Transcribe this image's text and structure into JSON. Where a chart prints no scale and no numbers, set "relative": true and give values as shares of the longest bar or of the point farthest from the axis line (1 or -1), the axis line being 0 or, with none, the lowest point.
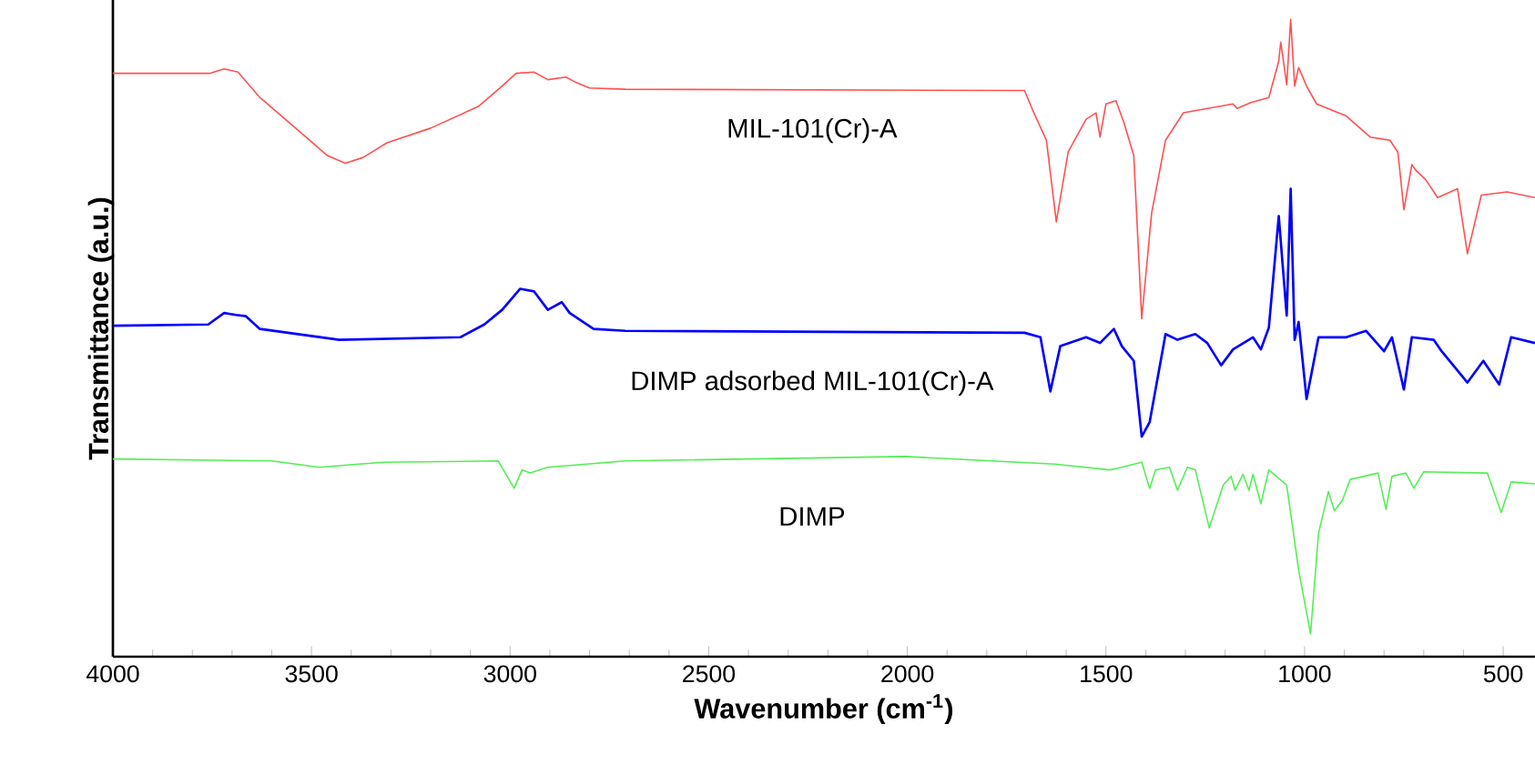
{
  "chart_data": {
    "type": "line",
    "relative": true,
    "xlabel": "Wavenumber (cm$^{-1}$)",
    "ylabel": "Transmittance (a.u.)",
    "xlim": [
      4000,
      420
    ],
    "xticks": [
      4000,
      3500,
      3000,
      2500,
      2000,
      1500,
      1000,
      500
    ],
    "series": [
      {
        "name": "MIL-101(Cr)-A",
        "color": "#ff5050",
        "x": [
          4000,
          3755,
          3720,
          3685,
          3630,
          3540,
          3460,
          3415,
          3370,
          3310,
          3200,
          3080,
          3020,
          2985,
          2940,
          2905,
          2860,
          2835,
          2800,
          2710,
          1705,
          1685,
          1650,
          1625,
          1595,
          1550,
          1525,
          1515,
          1500,
          1475,
          1455,
          1430,
          1410,
          1385,
          1350,
          1305,
          1180,
          1170,
          1135,
          1090,
          1065,
          1060,
          1045,
          1035,
          1025,
          1015,
          995,
          970,
          895,
          835,
          785,
          765,
          750,
          730,
          720,
          695,
          665,
          615,
          590,
          555,
          490,
          420
        ],
        "values": [
          0.915,
          0.915,
          0.922,
          0.917,
          0.877,
          0.829,
          0.786,
          0.774,
          0.783,
          0.806,
          0.829,
          0.863,
          0.895,
          0.915,
          0.917,
          0.905,
          0.909,
          0.901,
          0.892,
          0.89,
          0.888,
          0.858,
          0.81,
          0.682,
          0.792,
          0.843,
          0.853,
          0.815,
          0.867,
          0.872,
          0.838,
          0.786,
          0.53,
          0.696,
          0.81,
          0.853,
          0.867,
          0.86,
          0.869,
          0.877,
          0.934,
          0.964,
          0.897,
          1.0,
          0.895,
          0.924,
          0.895,
          0.867,
          0.848,
          0.815,
          0.81,
          0.791,
          0.701,
          0.772,
          0.763,
          0.748,
          0.72,
          0.734,
          0.632,
          0.724,
          0.729,
          0.72
        ]
      },
      {
        "name": "DIMP adsorbed MIL-101(Cr)-A",
        "color": "#0000ff",
        "x": [
          4000,
          3760,
          3720,
          3690,
          3665,
          3630,
          3430,
          3125,
          3065,
          3020,
          2975,
          2940,
          2905,
          2870,
          2850,
          2790,
          2710,
          1705,
          1665,
          1640,
          1615,
          1550,
          1515,
          1480,
          1460,
          1430,
          1410,
          1390,
          1350,
          1320,
          1275,
          1245,
          1210,
          1180,
          1130,
          1110,
          1090,
          1065,
          1045,
          1035,
          1025,
          1015,
          995,
          965,
          895,
          845,
          800,
          780,
          750,
          730,
          675,
          655,
          590,
          550,
          510,
          480,
          420
        ],
        "values": [
          0.519,
          0.521,
          0.539,
          0.536,
          0.534,
          0.514,
          0.497,
          0.501,
          0.521,
          0.544,
          0.577,
          0.573,
          0.544,
          0.556,
          0.539,
          0.514,
          0.511,
          0.508,
          0.501,
          0.416,
          0.487,
          0.501,
          0.492,
          0.514,
          0.487,
          0.464,
          0.345,
          0.368,
          0.506,
          0.497,
          0.506,
          0.492,
          0.457,
          0.482,
          0.501,
          0.482,
          0.516,
          0.691,
          0.535,
          0.734,
          0.497,
          0.525,
          0.404,
          0.501,
          0.501,
          0.511,
          0.479,
          0.501,
          0.419,
          0.501,
          0.497,
          0.479,
          0.43,
          0.464,
          0.427,
          0.501,
          0.492
        ]
      },
      {
        "name": "DIMP",
        "color": "#55ee55",
        "x": [
          4000,
          3600,
          3480,
          3320,
          3030,
          2990,
          2970,
          2950,
          2905,
          2710,
          2005,
          1630,
          1490,
          1460,
          1410,
          1390,
          1375,
          1340,
          1320,
          1295,
          1275,
          1240,
          1205,
          1185,
          1175,
          1155,
          1140,
          1130,
          1110,
          1090,
          1045,
          1015,
          985,
          965,
          940,
          925,
          905,
          885,
          815,
          795,
          780,
          745,
          725,
          700,
          540,
          505,
          480,
          420
        ],
        "values": [
          0.31,
          0.307,
          0.297,
          0.305,
          0.307,
          0.264,
          0.293,
          0.288,
          0.297,
          0.307,
          0.314,
          0.302,
          0.293,
          0.297,
          0.305,
          0.264,
          0.293,
          0.297,
          0.261,
          0.297,
          0.293,
          0.202,
          0.269,
          0.283,
          0.261,
          0.286,
          0.261,
          0.286,
          0.24,
          0.293,
          0.269,
          0.136,
          0.036,
          0.193,
          0.259,
          0.229,
          0.245,
          0.278,
          0.288,
          0.231,
          0.283,
          0.288,
          0.264,
          0.29,
          0.288,
          0.226,
          0.274,
          0.271
        ]
      }
    ]
  }
}
